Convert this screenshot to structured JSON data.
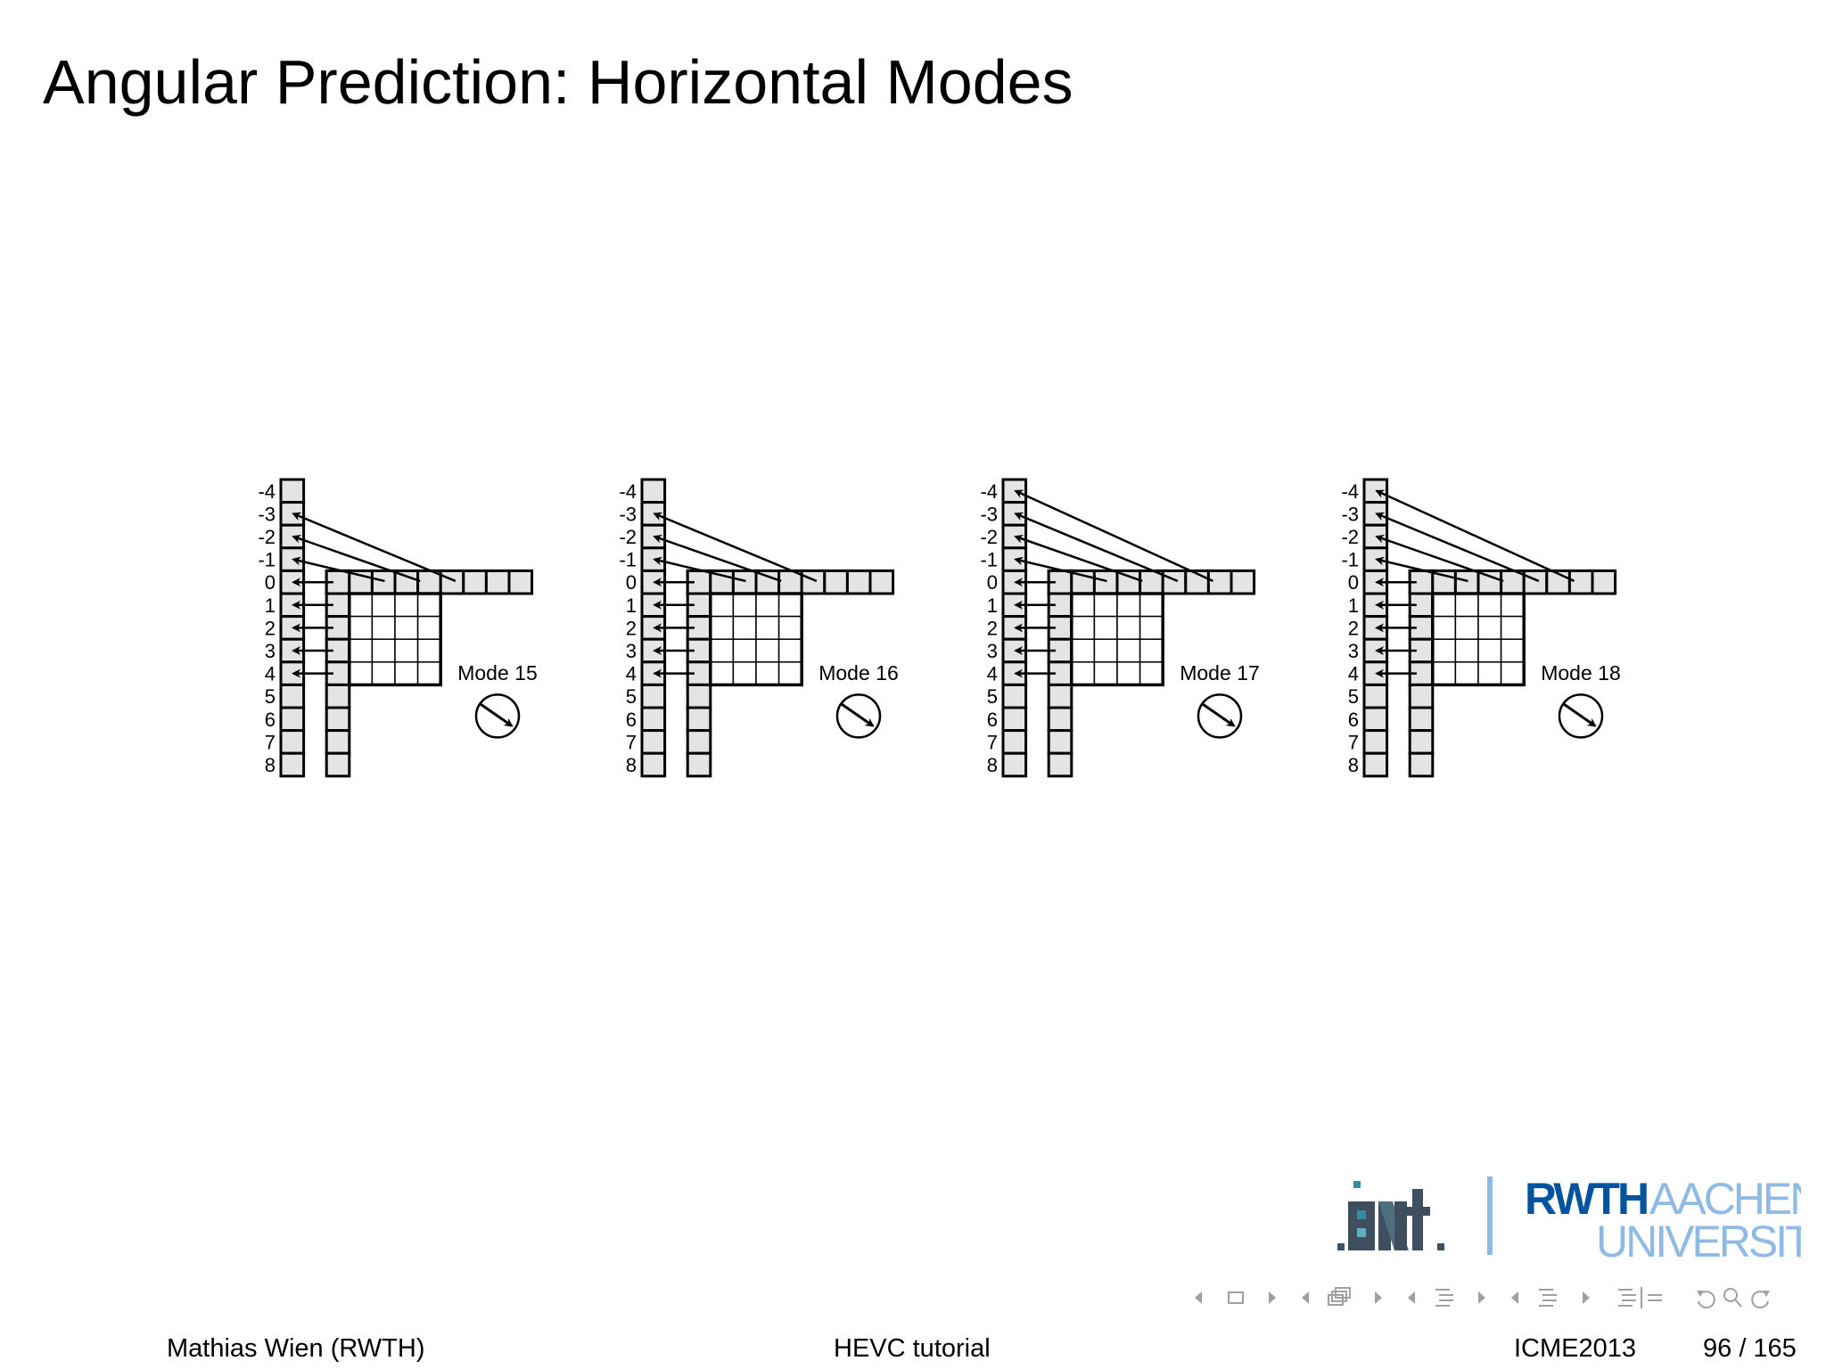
{
  "slide": {
    "title": "Angular Prediction: Horizontal Modes"
  },
  "row_labels": [
    "-4",
    "-3",
    "-2",
    "-1",
    "0",
    "1",
    "2",
    "3",
    "4",
    "5",
    "6",
    "7",
    "8"
  ],
  "diagrams": [
    {
      "id": "mode-15",
      "label": "Mode 15",
      "top_ref_samples": [
        -1,
        -2,
        -3
      ]
    },
    {
      "id": "mode-16",
      "label": "Mode 16",
      "top_ref_samples": [
        -1,
        -2,
        -3
      ]
    },
    {
      "id": "mode-17",
      "label": "Mode 17",
      "top_ref_samples": [
        -1,
        -2,
        -3,
        -4
      ]
    },
    {
      "id": "mode-18",
      "label": "Mode 18",
      "top_ref_samples": [
        -1,
        -2,
        -3,
        -4
      ]
    }
  ],
  "logos": {
    "institute": "ient",
    "university_line1_bold": "RWTH",
    "university_line1": "AACHEN",
    "university_line2": "UNIVERSITY",
    "rwth_blue": "#00549f",
    "rwth_light_blue": "#8ebae5",
    "ient_gray": "#3f4f5f",
    "ient_teal": "#2f8f9f"
  },
  "navigation": {
    "icons": [
      "prev-slide-arrow-icon",
      "slide-icon",
      "next-slide-arrow-icon",
      "prev-frame-arrow-icon",
      "frame-icon",
      "next-frame-arrow-icon",
      "prev-subsection-arrow-icon",
      "subsection-icon",
      "next-subsection-arrow-icon",
      "prev-section-arrow-icon",
      "section-icon",
      "next-section-arrow-icon",
      "outline-icon",
      "back-icon",
      "search-icon",
      "forward-icon"
    ],
    "color": "#a0a0a0"
  },
  "footer": {
    "author": "Mathias Wien  (RWTH)",
    "talk": "HEVC tutorial",
    "conference": "ICME2013",
    "page": "96 / 165"
  }
}
